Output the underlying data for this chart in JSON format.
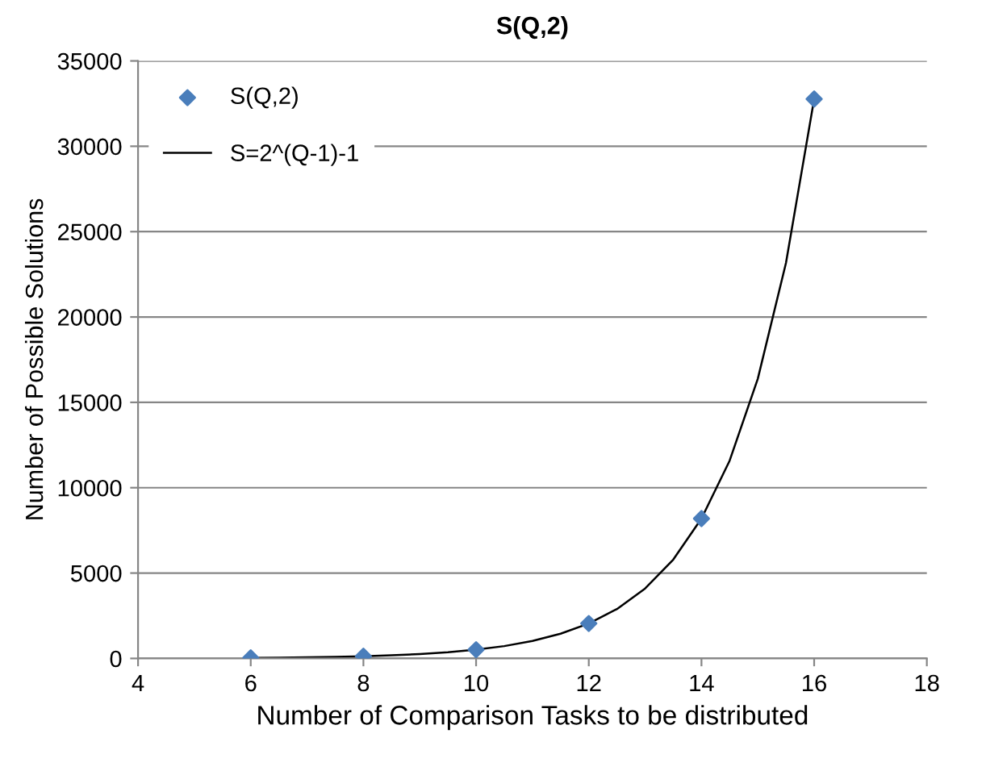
{
  "chart_data": {
    "type": "scatter",
    "title": "S(Q,2)",
    "xlabel": "Number of Comparison Tasks to be distributed",
    "ylabel": "Number of Possible Solutions",
    "series": [
      {
        "name": "S(Q,2)",
        "color": "#4a7ebb",
        "marker": "diamond",
        "x": [
          6,
          8,
          10,
          12,
          14,
          16
        ],
        "values": [
          31,
          127,
          511,
          2047,
          8191,
          32767
        ]
      },
      {
        "name": "S=2^(Q-1)-1",
        "type": "line",
        "color": "#000000",
        "marker": "none",
        "line_style": "solid",
        "x": [
          6,
          6.5,
          7,
          7.5,
          8,
          8.5,
          9,
          9.5,
          10,
          10.5,
          11,
          11.5,
          12,
          12.5,
          13,
          13.5,
          14,
          14.5,
          15,
          15.5,
          16
        ],
        "values": [
          31,
          44,
          63,
          90,
          127,
          180,
          255,
          361,
          511,
          723,
          1023,
          1447,
          2047,
          2895,
          4095,
          5792,
          8191,
          11584,
          16383,
          23169,
          32767
        ]
      }
    ],
    "xlim": [
      4,
      18
    ],
    "xticks": [
      4,
      6,
      8,
      10,
      12,
      14,
      16,
      18
    ],
    "ylim": [
      0,
      35000
    ],
    "yticks": [
      0,
      5000,
      10000,
      15000,
      20000,
      25000,
      30000,
      35000
    ],
    "grid": "y",
    "legend": "top left"
  }
}
